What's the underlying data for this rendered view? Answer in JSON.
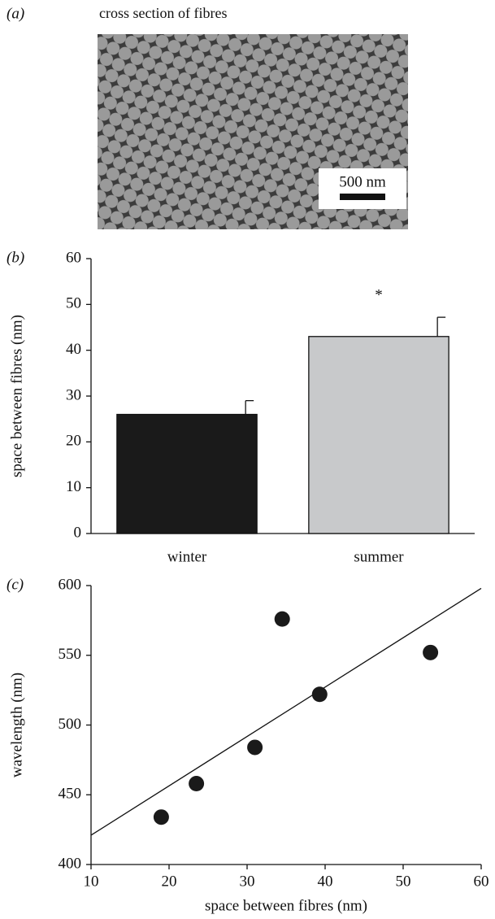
{
  "chart_data": [
    {
      "type": "image",
      "label": "(a)",
      "title": "cross section of fibres",
      "scale_bar": "500 nm"
    },
    {
      "type": "bar",
      "label": "(b)",
      "ylabel": "space between fibres (nm)",
      "categories": [
        "winter",
        "summer"
      ],
      "values": [
        26,
        43
      ],
      "errors": [
        3,
        4.2
      ],
      "colors": [
        "#1a1a1a",
        "#c8c9cb"
      ],
      "annotation": "*",
      "ylim": [
        0,
        60
      ],
      "yticks": [
        0,
        10,
        20,
        30,
        40,
        50,
        60
      ]
    },
    {
      "type": "scatter",
      "label": "(c)",
      "xlabel": "space between fibres (nm)",
      "ylabel": "wavelength (nm)",
      "x": [
        19,
        23.5,
        31,
        34.5,
        39.3,
        53.5
      ],
      "y": [
        434,
        458,
        484,
        576,
        522,
        552
      ],
      "color": "#1a1a1a",
      "fit": {
        "x": [
          10,
          60
        ],
        "y": [
          421,
          598
        ]
      },
      "xlim": [
        10,
        60
      ],
      "xticks": [
        10,
        20,
        30,
        40,
        50,
        60
      ],
      "ylim": [
        400,
        600
      ],
      "yticks": [
        400,
        450,
        500,
        550,
        600
      ]
    }
  ]
}
